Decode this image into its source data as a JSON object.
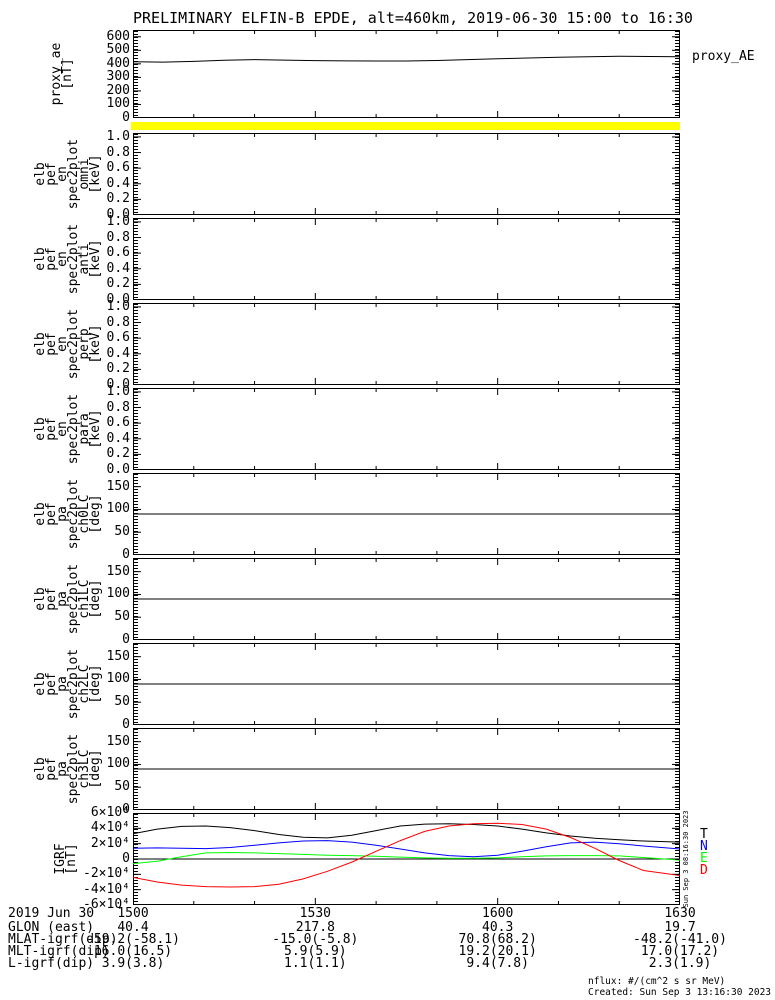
{
  "title": "PRELIMINARY ELFIN-B EPDE, alt=460km, 2019-06-30 15:00 to 16:30",
  "side_timestamp": "Sun Sep  3 08:16:30 2023",
  "footer": {
    "nflux": "nflux: #/(cm^2 s sr MeV)",
    "created": "Created: Sun Sep  3 13:16:30 2023"
  },
  "strip": {
    "color": "#ffff00"
  },
  "colors": {
    "background": "#ffffff",
    "axis": "#000000",
    "strip_yellow": "#ffff00",
    "igrf_T": "#000000",
    "igrf_N": "#0000ff",
    "igrf_E": "#00ff00",
    "igrf_D": "#ff0000"
  },
  "bottom_rows": [
    {
      "label": "2019 Jun 30",
      "values": [
        "1500",
        "1530",
        "1600",
        "1630"
      ]
    },
    {
      "label": "GLON (east)",
      "values": [
        "40.4",
        "217.8",
        "40.3",
        "19.7"
      ]
    },
    {
      "label": "MLAT-igrf(dip)",
      "values": [
        "-59.2(-58.1)",
        "-15.0(-5.8)",
        "70.8(68.2)",
        "-48.2(-41.0)"
      ]
    },
    {
      "label": "MLT-igrf(dip)",
      "values": [
        "16.0(16.5)",
        "5.9(5.9)",
        "19.2(20.1)",
        "17.0(17.2)"
      ]
    },
    {
      "label": "L-igrf(dip)",
      "values": [
        "3.9(3.8)",
        "1.1(1.1)",
        "9.4(7.8)",
        "2.3(1.9)"
      ]
    }
  ],
  "chart_data": {
    "type": "line",
    "title": "PRELIMINARY ELFIN-B EPDE, alt=460km, 2019-06-30 15:00 to 16:30",
    "x_axis": {
      "unit": "minutes after 15:00",
      "range": [
        0,
        90
      ],
      "minor_tick_minutes": 10
    },
    "xticks": [
      {
        "minute": 0,
        "label": "1500"
      },
      {
        "minute": 30,
        "label": "1530"
      },
      {
        "minute": 60,
        "label": "1600"
      },
      {
        "minute": 90,
        "label": "1630"
      }
    ],
    "igrf_legend": [
      {
        "label": "T",
        "color": "#000000"
      },
      {
        "label": "N",
        "color": "#0000ff"
      },
      {
        "label": "E",
        "color": "#00ff00"
      },
      {
        "label": "D",
        "color": "#ff0000"
      }
    ],
    "panels": [
      {
        "id": "proxy_ae",
        "left_label": "proxy_ae\n[nT]",
        "right_label": "proxy_AE",
        "ylim": [
          0,
          650
        ],
        "yticks": [
          0,
          100,
          200,
          300,
          400,
          500,
          600
        ],
        "ytick_labels": [
          "0",
          "100",
          "200",
          "300",
          "400",
          "500",
          "600"
        ],
        "series": [
          {
            "name": "proxy_AE",
            "color": "#000000",
            "x": [
              0,
              5,
              10,
              15,
              20,
              25,
              30,
              35,
              40,
              45,
              50,
              55,
              60,
              65,
              70,
              75,
              80,
              85,
              90
            ],
            "y": [
              415,
              413,
              418,
              426,
              431,
              428,
              424,
              422,
              421,
              421,
              425,
              431,
              437,
              443,
              449,
              453,
              456,
              454,
              452
            ]
          }
        ]
      },
      {
        "id": "en_omni",
        "left_label": "elb\npef\nen\nspec2plot\nomni\n[keV]",
        "ylim": [
          0,
          1.05
        ],
        "yticks": [
          0,
          0.2,
          0.4,
          0.6,
          0.8,
          1.0
        ],
        "ytick_labels": [
          "0.0",
          "0.2",
          "0.4",
          "0.6",
          "0.8",
          "1.0"
        ],
        "series": []
      },
      {
        "id": "en_anti",
        "left_label": "elb\npef\nen\nspec2plot\nanti\n[keV]",
        "ylim": [
          0,
          1.05
        ],
        "yticks": [
          0,
          0.2,
          0.4,
          0.6,
          0.8,
          1.0
        ],
        "ytick_labels": [
          "0.0",
          "0.2",
          "0.4",
          "0.6",
          "0.8",
          "1.0"
        ],
        "series": []
      },
      {
        "id": "en_perp",
        "left_label": "elb\npef\nen\nspec2plot\nperp\n[keV]",
        "ylim": [
          0,
          1.05
        ],
        "yticks": [
          0,
          0.2,
          0.4,
          0.6,
          0.8,
          1.0
        ],
        "ytick_labels": [
          "0.0",
          "0.2",
          "0.4",
          "0.6",
          "0.8",
          "1.0"
        ],
        "series": []
      },
      {
        "id": "en_para",
        "left_label": "elb\npef\nen\nspec2plot\npara\n[keV]",
        "ylim": [
          0,
          1.05
        ],
        "yticks": [
          0,
          0.2,
          0.4,
          0.6,
          0.8,
          1.0
        ],
        "ytick_labels": [
          "0.0",
          "0.2",
          "0.4",
          "0.6",
          "0.8",
          "1.0"
        ],
        "series": []
      },
      {
        "id": "pa_ch0lc",
        "left_label": "elb\npef\npa\nspec2plot\nch0LC\n[deg]",
        "ylim": [
          0,
          180
        ],
        "yticks": [
          0,
          50,
          100,
          150
        ],
        "ytick_labels": [
          "0",
          "50",
          "100",
          "150"
        ],
        "hline": 90,
        "series": []
      },
      {
        "id": "pa_ch1lc",
        "left_label": "elb\npef\npa\nspec2plot\nch1LC\n[deg]",
        "ylim": [
          0,
          180
        ],
        "yticks": [
          0,
          50,
          100,
          150
        ],
        "ytick_labels": [
          "0",
          "50",
          "100",
          "150"
        ],
        "hline": 90,
        "series": []
      },
      {
        "id": "pa_ch2lc",
        "left_label": "elb\npef\npa\nspec2plot\nch2LC\n[deg]",
        "ylim": [
          0,
          180
        ],
        "yticks": [
          0,
          50,
          100,
          150
        ],
        "ytick_labels": [
          "0",
          "50",
          "100",
          "150"
        ],
        "hline": 90,
        "series": []
      },
      {
        "id": "pa_ch3lc",
        "left_label": "elb\npef\npa\nspec2plot\nch3LC\n[deg]",
        "ylim": [
          0,
          180
        ],
        "yticks": [
          0,
          50,
          100,
          150
        ],
        "ytick_labels": [
          "0",
          "50",
          "100",
          "150"
        ],
        "hline": 90,
        "series": []
      },
      {
        "id": "igrf",
        "left_label": "IGRF\n[nT]",
        "ylim": [
          -60000,
          60000
        ],
        "yticks": [
          -60000,
          -40000,
          -20000,
          0,
          20000,
          40000,
          60000
        ],
        "ytick_labels": [
          "-6×10⁴",
          "-4×10⁴",
          "-2×10⁴",
          "0",
          "2×10⁴",
          "4×10⁴",
          "6×10⁴"
        ],
        "hline": 0,
        "series": [
          {
            "name": "T",
            "color": "#000000",
            "x": [
              0,
              4,
              8,
              12,
              16,
              20,
              24,
              28,
              32,
              36,
              40,
              44,
              48,
              52,
              56,
              60,
              64,
              68,
              72,
              76,
              80,
              84,
              90
            ],
            "y": [
              33000,
              39000,
              42500,
              43000,
              41000,
              37000,
              32000,
              28500,
              27500,
              31000,
              37000,
              43000,
              45500,
              46000,
              45000,
              43000,
              39000,
              34000,
              30000,
              27000,
              25000,
              23500,
              22000
            ]
          },
          {
            "name": "N",
            "color": "#0000ff",
            "x": [
              0,
              4,
              8,
              12,
              16,
              20,
              24,
              28,
              32,
              36,
              40,
              44,
              48,
              52,
              56,
              60,
              64,
              68,
              72,
              76,
              80,
              84,
              90
            ],
            "y": [
              14000,
              14500,
              14000,
              13500,
              15000,
              18000,
              21000,
              23500,
              24000,
              22000,
              18000,
              13000,
              8000,
              4500,
              3000,
              5000,
              10000,
              16000,
              21000,
              22000,
              20000,
              17000,
              13000
            ]
          },
          {
            "name": "E",
            "color": "#00ff00",
            "x": [
              0,
              4,
              8,
              12,
              16,
              20,
              24,
              28,
              32,
              36,
              40,
              44,
              48,
              52,
              56,
              60,
              64,
              68,
              72,
              76,
              80,
              84,
              90
            ],
            "y": [
              -6000,
              -3000,
              3000,
              8000,
              8500,
              8000,
              7000,
              6000,
              5000,
              4500,
              3500,
              2500,
              1500,
              1000,
              1000,
              1500,
              3000,
              4000,
              4500,
              4500,
              4000,
              2000,
              -1500
            ]
          },
          {
            "name": "D",
            "color": "#ff0000",
            "x": [
              0,
              4,
              8,
              12,
              16,
              20,
              24,
              28,
              32,
              36,
              40,
              44,
              48,
              52,
              56,
              60,
              64,
              68,
              72,
              76,
              80,
              84,
              90
            ],
            "y": [
              -24000,
              -30000,
              -34000,
              -36000,
              -36500,
              -36000,
              -33000,
              -26000,
              -16000,
              -4000,
              10000,
              24000,
              36000,
              43000,
              46000,
              46500,
              45000,
              39000,
              28000,
              14000,
              -2000,
              -15000,
              -21500
            ]
          }
        ]
      }
    ]
  }
}
